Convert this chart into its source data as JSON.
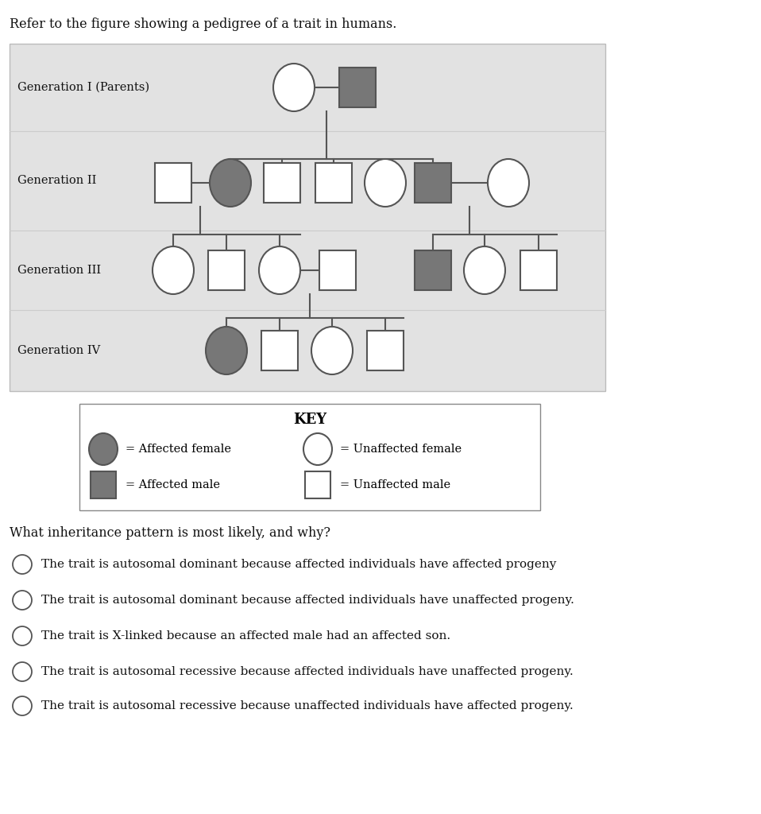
{
  "title_text": "Refer to the figure showing a pedigree of a trait in humans.",
  "white": "#ffffff",
  "dark_gray": "#777777",
  "light_gray": "#e2e2e2",
  "line_color": "#555555",
  "gen_labels": [
    "Generation I (Parents)",
    "Generation II",
    "Generation III",
    "Generation IV"
  ],
  "question_text": "What inheritance pattern is most likely, and why?",
  "choices": [
    "The trait is autosomal dominant because affected individuals have affected progeny",
    "The trait is autosomal dominant because affected individuals have unaffected progeny.",
    "The trait is X-linked because an affected male had an affected son.",
    "The trait is autosomal recessive because affected individuals have unaffected progeny.",
    "The trait is autosomal recessive because unaffected individuals have affected progeny."
  ],
  "key_title": "KEY"
}
